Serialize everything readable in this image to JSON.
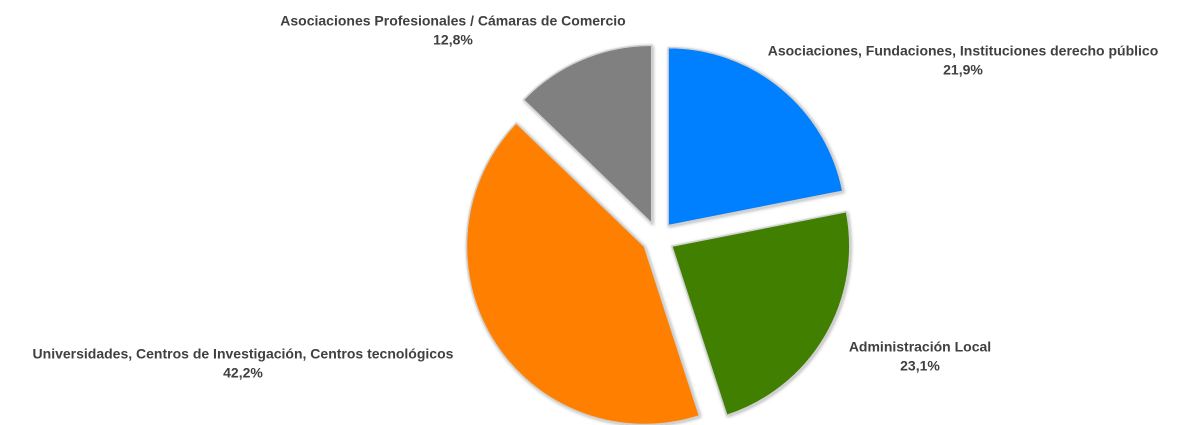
{
  "chart_data": {
    "type": "pie",
    "categories": [
      "Asociaciones, Fundaciones, Instituciones derecho público",
      "Administración Local",
      "Universidades, Centros de Investigación, Centros tecnológicos",
      "Asociaciones Profesionales / Cámaras de Comercio"
    ],
    "values": [
      21.9,
      23.1,
      42.2,
      12.8
    ],
    "value_labels": [
      "21,9%",
      "23,1%",
      "42,2%",
      "12,8%"
    ],
    "colors": [
      "#0080ff",
      "#3f7f00",
      "#ff8000",
      "#808080"
    ]
  }
}
